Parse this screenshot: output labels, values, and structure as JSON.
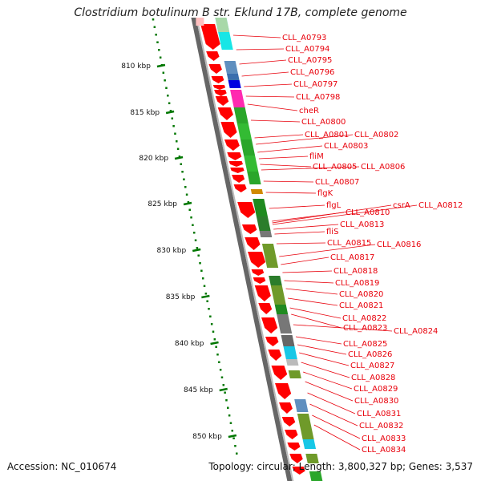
{
  "title": "Clostridium botulinum B str. Eklund 17B, complete genome",
  "accession": "Accession: NC_010674",
  "topology": "Topology: circular; Length: 3,800,327 bp; Genes: 3,537",
  "colors": {
    "scale_dots": "#007700",
    "backbone": "#666666",
    "gene_label": "#e8000b",
    "forward_gene": "#ff0000"
  },
  "scale": [
    {
      "label": "810 kbp",
      "kbp": 810
    },
    {
      "label": "815 kbp",
      "kbp": 815
    },
    {
      "label": "820 kbp",
      "kbp": 820
    },
    {
      "label": "825 kbp",
      "kbp": 825
    },
    {
      "label": "830 kbp",
      "kbp": 830
    },
    {
      "label": "835 kbp",
      "kbp": 835
    },
    {
      "label": "840 kbp",
      "kbp": 840
    },
    {
      "label": "845 kbp",
      "kbp": 845
    },
    {
      "label": "850 kbp",
      "kbp": 850
    }
  ],
  "gene_labels": [
    "CLL_A0793",
    "CLL_A0794",
    "CLL_A0795",
    "CLL_A0796",
    "CLL_A0797",
    "CLL_A0798",
    "cheR",
    "CLL_A0800",
    "CLL_A0801",
    "CLL_A0802",
    "CLL_A0803",
    "fliM",
    "CLL_A0805",
    "CLL_A0806",
    "CLL_A0807",
    "flgK",
    "flgL",
    "CLL_A0810",
    "csrA",
    "CLL_A0812",
    "CLL_A0813",
    "fliS",
    "CLL_A0815",
    "CLL_A0816",
    "CLL_A0817",
    "CLL_A0818",
    "CLL_A0819",
    "CLL_A0820",
    "CLL_A0821",
    "CLL_A0822",
    "CLL_A0823",
    "CLL_A0824",
    "CLL_A0825",
    "CLL_A0826",
    "CLL_A0827",
    "CLL_A0828",
    "CLL_A0829",
    "CLL_A0830",
    "CLL_A0831",
    "CLL_A0832",
    "CLL_A0833",
    "CLL_A0834"
  ]
}
